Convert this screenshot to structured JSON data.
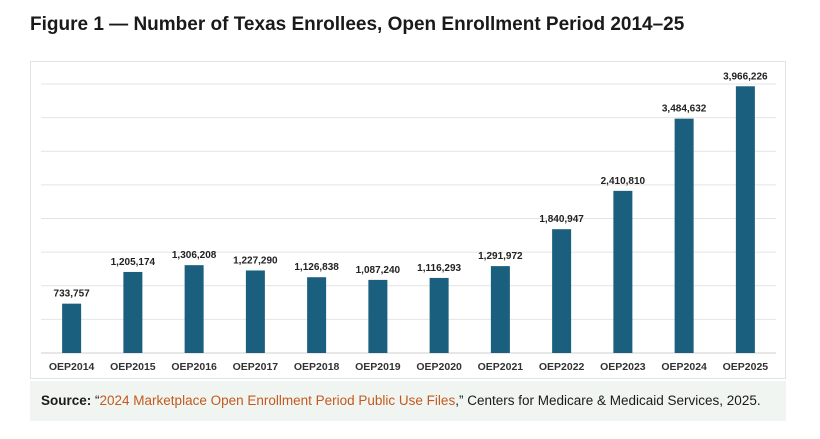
{
  "figure": {
    "title": "Figure 1 — Number of Texas Enrollees, Open Enrollment Period 2014–25"
  },
  "source": {
    "label": "Source:",
    "quote_open": " “",
    "link_text": "2024 Marketplace Open Enrollment Period Public Use Files",
    "rest": ",” Centers for Medicare & Medicaid Services, 2025.",
    "link_color": "#c25a1d"
  },
  "chart_data": {
    "type": "bar",
    "title": "",
    "xlabel": "",
    "ylabel": "",
    "categories": [
      "OEP2014",
      "OEP2015",
      "OEP2016",
      "OEP2017",
      "OEP2018",
      "OEP2019",
      "OEP2020",
      "OEP2021",
      "OEP2022",
      "OEP2023",
      "OEP2024",
      "OEP2025"
    ],
    "values": [
      733757,
      1205174,
      1306208,
      1227290,
      1126838,
      1087240,
      1116293,
      1291972,
      1840947,
      2410810,
      3484632,
      3966226
    ],
    "value_labels": [
      "733,757",
      "1,205,174",
      "1,306,208",
      "1,227,290",
      "1,126,838",
      "1,087,240",
      "1,116,293",
      "1,291,972",
      "1,840,947",
      "2,410,810",
      "3,484,632",
      "3,966,226"
    ],
    "ylim": [
      0,
      4000000
    ],
    "grid": true,
    "grid_step": 500000,
    "legend": "none",
    "bar_color": "#1a5f7e"
  }
}
